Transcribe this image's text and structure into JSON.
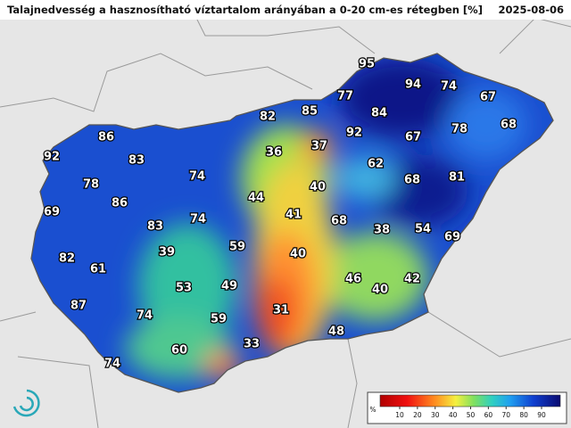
{
  "header": {
    "title": "Talajnedvesség a hasznosítható víztartalom arányában a 0-20 cm-es rétegben [%]",
    "date": "2025-08-06"
  },
  "labels": [
    95,
    94,
    74,
    67,
    82,
    85,
    77,
    84,
    78,
    68,
    86,
    92,
    83,
    36,
    37,
    92,
    67,
    62,
    74,
    68,
    81,
    78,
    40,
    44,
    86,
    69,
    74,
    41,
    68,
    83,
    38,
    54,
    69,
    59,
    39,
    40,
    82,
    61,
    46,
    42,
    53,
    49,
    40,
    87,
    74,
    31,
    59,
    48,
    33,
    60,
    74
  ],
  "legend": {
    "unit": "%",
    "ticks": [
      10,
      20,
      30,
      40,
      50,
      60,
      70,
      80,
      90
    ]
  }
}
